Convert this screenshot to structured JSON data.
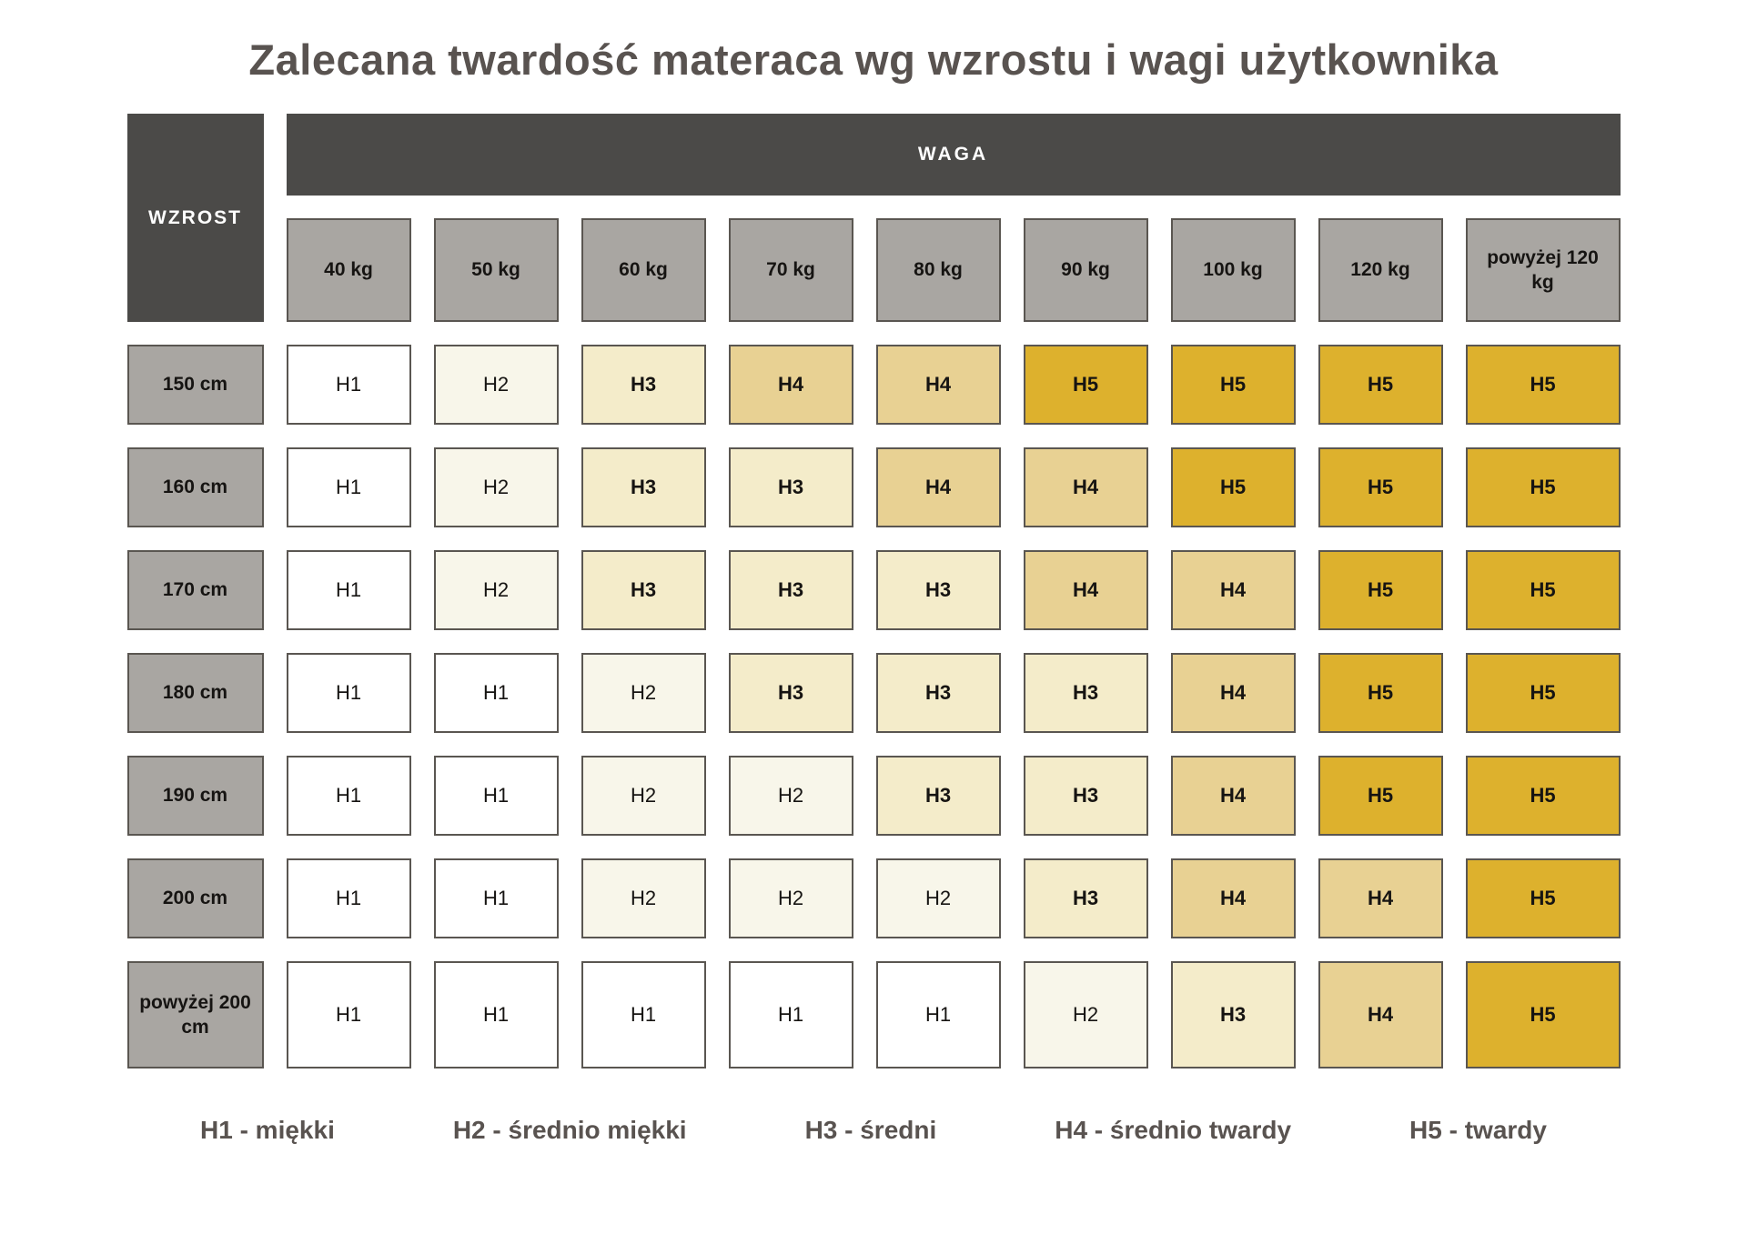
{
  "title": "Zalecana twardość materaca wg wzrostu i wagi użytkownika",
  "axes": {
    "row": "WZROST",
    "col": "WAGA"
  },
  "chart_data": {
    "type": "heatmap",
    "title": "Zalecana twardość materaca wg wzrostu i wagi użytkownika",
    "x_label": "WAGA",
    "y_label": "WZROST",
    "x_categories": [
      "40 kg",
      "50 kg",
      "60 kg",
      "70 kg",
      "80 kg",
      "90 kg",
      "100 kg",
      "120 kg",
      "powyżej 120 kg"
    ],
    "y_categories": [
      "150 cm",
      "160 cm",
      "170 cm",
      "180 cm",
      "190 cm",
      "200 cm",
      "powyżej 200 cm"
    ],
    "values": [
      [
        "H1",
        "H2",
        "H3",
        "H4",
        "H4",
        "H5",
        "H5",
        "H5",
        "H5"
      ],
      [
        "H1",
        "H2",
        "H3",
        "H3",
        "H4",
        "H4",
        "H5",
        "H5",
        "H5"
      ],
      [
        "H1",
        "H2",
        "H3",
        "H3",
        "H3",
        "H4",
        "H4",
        "H5",
        "H5"
      ],
      [
        "H1",
        "H1",
        "H2",
        "H3",
        "H3",
        "H3",
        "H4",
        "H5",
        "H5"
      ],
      [
        "H1",
        "H1",
        "H2",
        "H2",
        "H3",
        "H3",
        "H4",
        "H5",
        "H5"
      ],
      [
        "H1",
        "H1",
        "H2",
        "H2",
        "H2",
        "H3",
        "H4",
        "H4",
        "H5"
      ],
      [
        "H1",
        "H1",
        "H1",
        "H1",
        "H1",
        "H2",
        "H3",
        "H4",
        "H5"
      ]
    ],
    "legend": [
      "H1 - miękki",
      "H2 - średnio miękki",
      "H3 - średni",
      "H4 - średnio twardy",
      "H5 - twardy"
    ],
    "grid": false,
    "legend_position": "bottom"
  },
  "legend": {
    "items": [
      "H1 - miękki",
      "H2 - średnio miękki",
      "H3 - średni",
      "H4 - średnio twardy",
      "H5 - twardy"
    ]
  },
  "colors": {
    "levels": {
      "H1": "#ffffff",
      "H2": "#f8f6ea",
      "H3": "#f4ecca",
      "H4": "#e8d193",
      "H5": "#ddb12d"
    },
    "header_dark": "#4b4a48",
    "header_gray": "#a9a6a2",
    "cell_border": "#5a5651",
    "title_text": "#595350"
  }
}
